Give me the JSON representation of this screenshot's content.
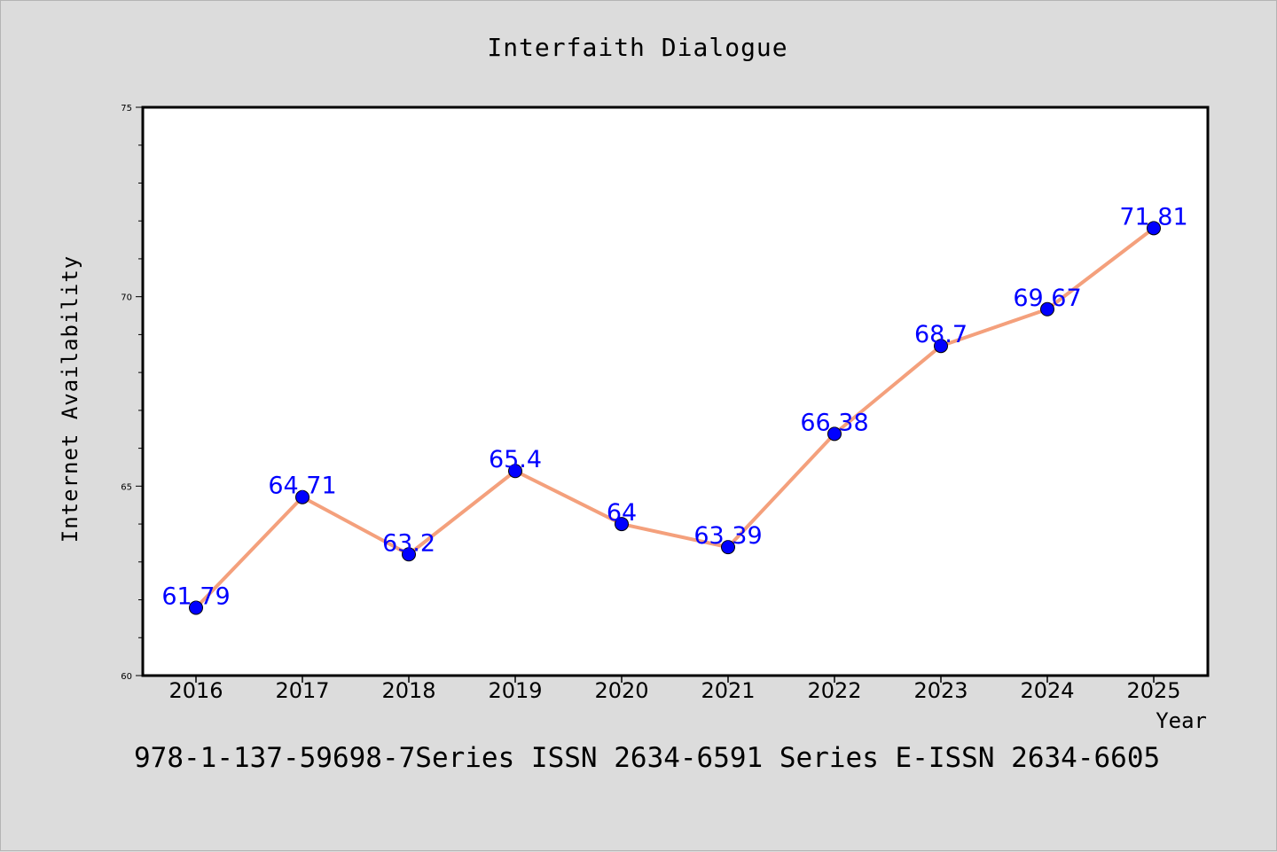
{
  "chart_data": {
    "type": "line",
    "title": "Interfaith Dialogue",
    "xlabel": "Year",
    "ylabel": "Internet Availability",
    "x": [
      "2016",
      "2017",
      "2018",
      "2019",
      "2020",
      "2021",
      "2022",
      "2023",
      "2024",
      "2025"
    ],
    "values": [
      61.79,
      64.71,
      63.2,
      65.4,
      64,
      63.39,
      66.38,
      68.7,
      69.67,
      71.81
    ],
    "data_labels": [
      "61.79",
      "64.71",
      "63.2",
      "65.4",
      "64",
      "63.39",
      "66.38",
      "68.7",
      "69.67",
      "71.81"
    ],
    "ylim": [
      60,
      75
    ],
    "yticks": [
      "60",
      "65",
      "70",
      "75"
    ],
    "grid": false,
    "legend": "none",
    "line_color": "#f4a07c",
    "marker_color": "#0000ff",
    "label_color": "#0000ff"
  },
  "footer_text": "978-1-137-59698-7Series ISSN 2634-6591 Series E-ISSN 2634-6605"
}
